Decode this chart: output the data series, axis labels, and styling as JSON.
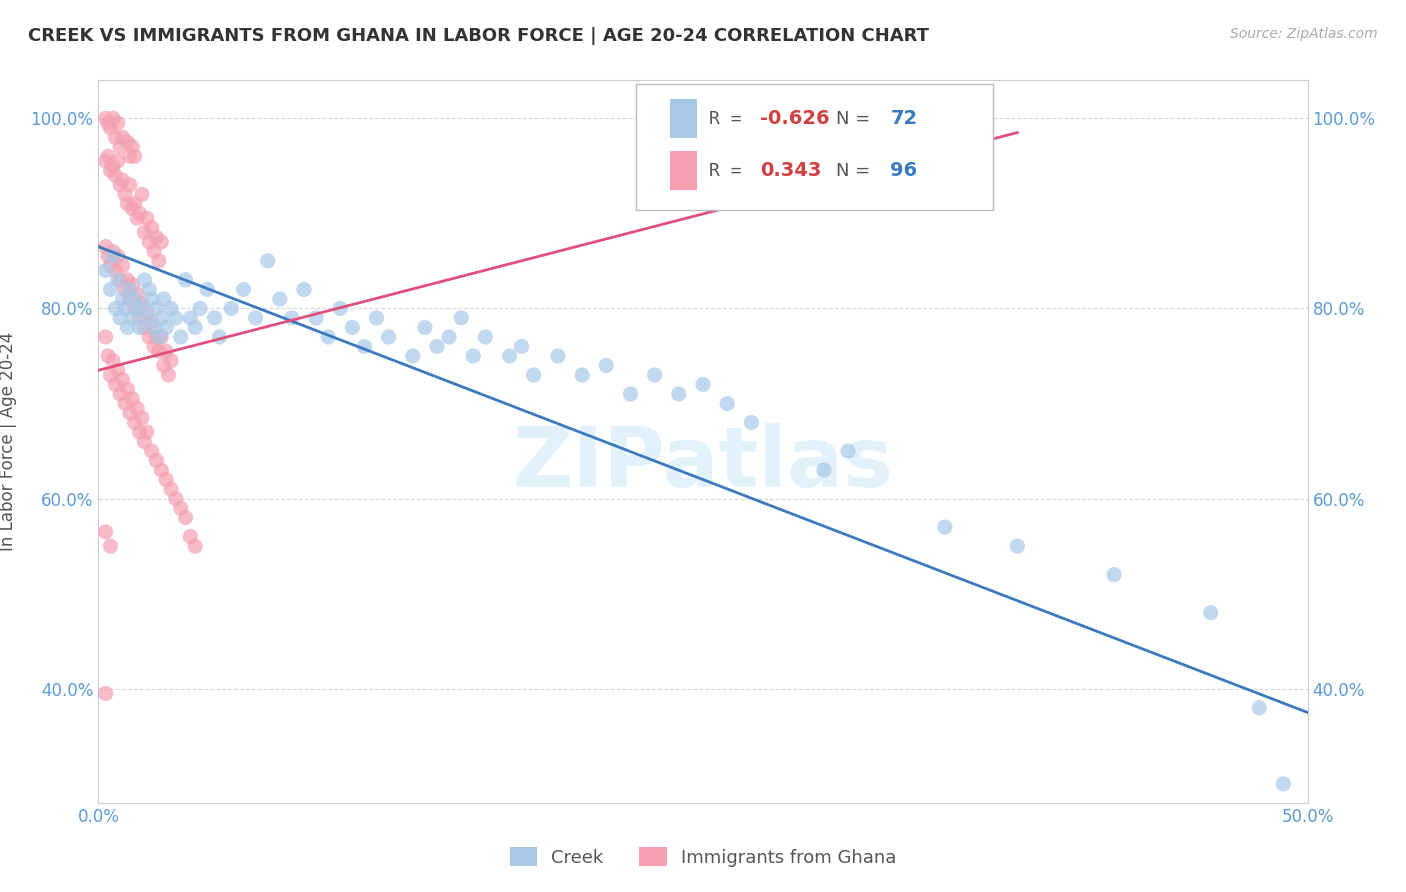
{
  "title": "CREEK VS IMMIGRANTS FROM GHANA IN LABOR FORCE | AGE 20-24 CORRELATION CHART",
  "source": "Source: ZipAtlas.com",
  "ylabel": "In Labor Force | Age 20-24",
  "xmin": 0.0,
  "xmax": 0.5,
  "ymin": 0.28,
  "ymax": 1.04,
  "xticks": [
    0.0,
    0.1,
    0.2,
    0.3,
    0.4,
    0.5
  ],
  "xticklabels": [
    "0.0%",
    "",
    "",
    "",
    "",
    "50.0%"
  ],
  "yticks": [
    0.4,
    0.6,
    0.8,
    1.0
  ],
  "yticklabels": [
    "40.0%",
    "60.0%",
    "80.0%",
    "100.0%"
  ],
  "legend_r_creek": "-0.626",
  "legend_n_creek": "72",
  "legend_r_ghana": "0.343",
  "legend_n_ghana": "96",
  "creek_color": "#a8c8e8",
  "ghana_color": "#f4a0b0",
  "trendline_creek_color": "#3a7abf",
  "trendline_ghana_color": "#e0507a",
  "watermark": "ZIPatlas",
  "creek_trendline_x": [
    0.0,
    0.5
  ],
  "creek_trendline_y": [
    0.865,
    0.375
  ],
  "ghana_trendline_x": [
    0.0,
    0.38
  ],
  "ghana_trendline_y": [
    0.735,
    0.985
  ],
  "creek_scatter": [
    [
      0.003,
      0.84
    ],
    [
      0.005,
      0.82
    ],
    [
      0.006,
      0.855
    ],
    [
      0.007,
      0.8
    ],
    [
      0.008,
      0.83
    ],
    [
      0.009,
      0.79
    ],
    [
      0.01,
      0.81
    ],
    [
      0.011,
      0.8
    ],
    [
      0.012,
      0.78
    ],
    [
      0.013,
      0.82
    ],
    [
      0.014,
      0.79
    ],
    [
      0.015,
      0.81
    ],
    [
      0.016,
      0.8
    ],
    [
      0.017,
      0.78
    ],
    [
      0.018,
      0.8
    ],
    [
      0.019,
      0.83
    ],
    [
      0.02,
      0.79
    ],
    [
      0.021,
      0.82
    ],
    [
      0.022,
      0.81
    ],
    [
      0.023,
      0.78
    ],
    [
      0.024,
      0.8
    ],
    [
      0.025,
      0.77
    ],
    [
      0.026,
      0.79
    ],
    [
      0.027,
      0.81
    ],
    [
      0.028,
      0.78
    ],
    [
      0.03,
      0.8
    ],
    [
      0.032,
      0.79
    ],
    [
      0.034,
      0.77
    ],
    [
      0.036,
      0.83
    ],
    [
      0.038,
      0.79
    ],
    [
      0.04,
      0.78
    ],
    [
      0.042,
      0.8
    ],
    [
      0.045,
      0.82
    ],
    [
      0.048,
      0.79
    ],
    [
      0.05,
      0.77
    ],
    [
      0.055,
      0.8
    ],
    [
      0.06,
      0.82
    ],
    [
      0.065,
      0.79
    ],
    [
      0.07,
      0.85
    ],
    [
      0.075,
      0.81
    ],
    [
      0.08,
      0.79
    ],
    [
      0.085,
      0.82
    ],
    [
      0.09,
      0.79
    ],
    [
      0.095,
      0.77
    ],
    [
      0.1,
      0.8
    ],
    [
      0.105,
      0.78
    ],
    [
      0.11,
      0.76
    ],
    [
      0.115,
      0.79
    ],
    [
      0.12,
      0.77
    ],
    [
      0.13,
      0.75
    ],
    [
      0.135,
      0.78
    ],
    [
      0.14,
      0.76
    ],
    [
      0.145,
      0.77
    ],
    [
      0.15,
      0.79
    ],
    [
      0.155,
      0.75
    ],
    [
      0.16,
      0.77
    ],
    [
      0.17,
      0.75
    ],
    [
      0.175,
      0.76
    ],
    [
      0.18,
      0.73
    ],
    [
      0.19,
      0.75
    ],
    [
      0.2,
      0.73
    ],
    [
      0.21,
      0.74
    ],
    [
      0.22,
      0.71
    ],
    [
      0.23,
      0.73
    ],
    [
      0.24,
      0.71
    ],
    [
      0.25,
      0.72
    ],
    [
      0.26,
      0.7
    ],
    [
      0.27,
      0.68
    ],
    [
      0.3,
      0.63
    ],
    [
      0.31,
      0.65
    ],
    [
      0.35,
      0.57
    ],
    [
      0.38,
      0.55
    ],
    [
      0.42,
      0.52
    ],
    [
      0.46,
      0.48
    ],
    [
      0.48,
      0.38
    ],
    [
      0.49,
      0.3
    ]
  ],
  "ghana_scatter": [
    [
      0.003,
      1.0
    ],
    [
      0.004,
      0.995
    ],
    [
      0.005,
      0.99
    ],
    [
      0.006,
      1.0
    ],
    [
      0.007,
      0.98
    ],
    [
      0.008,
      0.995
    ],
    [
      0.009,
      0.97
    ],
    [
      0.01,
      0.98
    ],
    [
      0.012,
      0.975
    ],
    [
      0.013,
      0.96
    ],
    [
      0.014,
      0.97
    ],
    [
      0.015,
      0.96
    ],
    [
      0.003,
      0.955
    ],
    [
      0.004,
      0.96
    ],
    [
      0.005,
      0.945
    ],
    [
      0.006,
      0.95
    ],
    [
      0.007,
      0.94
    ],
    [
      0.008,
      0.955
    ],
    [
      0.009,
      0.93
    ],
    [
      0.01,
      0.935
    ],
    [
      0.011,
      0.92
    ],
    [
      0.012,
      0.91
    ],
    [
      0.013,
      0.93
    ],
    [
      0.014,
      0.905
    ],
    [
      0.015,
      0.91
    ],
    [
      0.016,
      0.895
    ],
    [
      0.017,
      0.9
    ],
    [
      0.018,
      0.92
    ],
    [
      0.019,
      0.88
    ],
    [
      0.02,
      0.895
    ],
    [
      0.021,
      0.87
    ],
    [
      0.022,
      0.885
    ],
    [
      0.023,
      0.86
    ],
    [
      0.024,
      0.875
    ],
    [
      0.025,
      0.85
    ],
    [
      0.026,
      0.87
    ],
    [
      0.003,
      0.865
    ],
    [
      0.004,
      0.855
    ],
    [
      0.005,
      0.845
    ],
    [
      0.006,
      0.86
    ],
    [
      0.007,
      0.84
    ],
    [
      0.008,
      0.855
    ],
    [
      0.009,
      0.83
    ],
    [
      0.01,
      0.845
    ],
    [
      0.011,
      0.82
    ],
    [
      0.012,
      0.83
    ],
    [
      0.013,
      0.81
    ],
    [
      0.014,
      0.825
    ],
    [
      0.015,
      0.8
    ],
    [
      0.016,
      0.815
    ],
    [
      0.017,
      0.79
    ],
    [
      0.018,
      0.805
    ],
    [
      0.019,
      0.78
    ],
    [
      0.02,
      0.795
    ],
    [
      0.021,
      0.77
    ],
    [
      0.022,
      0.785
    ],
    [
      0.023,
      0.76
    ],
    [
      0.024,
      0.77
    ],
    [
      0.025,
      0.755
    ],
    [
      0.026,
      0.77
    ],
    [
      0.027,
      0.74
    ],
    [
      0.028,
      0.755
    ],
    [
      0.029,
      0.73
    ],
    [
      0.03,
      0.745
    ],
    [
      0.003,
      0.77
    ],
    [
      0.004,
      0.75
    ],
    [
      0.005,
      0.73
    ],
    [
      0.006,
      0.745
    ],
    [
      0.007,
      0.72
    ],
    [
      0.008,
      0.735
    ],
    [
      0.009,
      0.71
    ],
    [
      0.01,
      0.725
    ],
    [
      0.011,
      0.7
    ],
    [
      0.012,
      0.715
    ],
    [
      0.013,
      0.69
    ],
    [
      0.014,
      0.705
    ],
    [
      0.015,
      0.68
    ],
    [
      0.016,
      0.695
    ],
    [
      0.017,
      0.67
    ],
    [
      0.018,
      0.685
    ],
    [
      0.019,
      0.66
    ],
    [
      0.02,
      0.67
    ],
    [
      0.022,
      0.65
    ],
    [
      0.024,
      0.64
    ],
    [
      0.026,
      0.63
    ],
    [
      0.028,
      0.62
    ],
    [
      0.03,
      0.61
    ],
    [
      0.032,
      0.6
    ],
    [
      0.034,
      0.59
    ],
    [
      0.036,
      0.58
    ],
    [
      0.038,
      0.56
    ],
    [
      0.04,
      0.55
    ],
    [
      0.003,
      0.565
    ],
    [
      0.005,
      0.55
    ],
    [
      0.003,
      0.395
    ]
  ]
}
